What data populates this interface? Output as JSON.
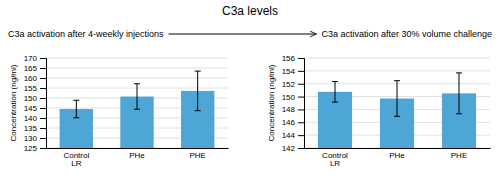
{
  "title": "C3a levels",
  "chart_data": [
    {
      "type": "bar",
      "subtitle": "C3a activation after 4-weekly injections",
      "categories": [
        "Control\nLR",
        "PHe",
        "PHE"
      ],
      "values": [
        144.49,
        150.74,
        153.56
      ],
      "errors": [
        4.39,
        6.38,
        9.9
      ],
      "color": "#4da6d6",
      "ylabel": "Concentration (ng/ml)",
      "ylim": [
        125,
        170
      ],
      "yticks": [
        125,
        130,
        135,
        140,
        145,
        150,
        155,
        160,
        165,
        170
      ],
      "grid": true
    },
    {
      "type": "bar",
      "subtitle": "C3a activation after 30% volume challenge",
      "categories": [
        "Control\nLR",
        "PHe",
        "PHE"
      ],
      "values": [
        150.74,
        149.7,
        150.5
      ],
      "errors": [
        1.6,
        2.77,
        3.18
      ],
      "color": "#4da6d6",
      "ylabel": "Concentration (ng/ml)",
      "ylim": [
        142,
        156
      ],
      "yticks": [
        142,
        144,
        146,
        148,
        150,
        152,
        154,
        156
      ],
      "grid": true
    }
  ]
}
